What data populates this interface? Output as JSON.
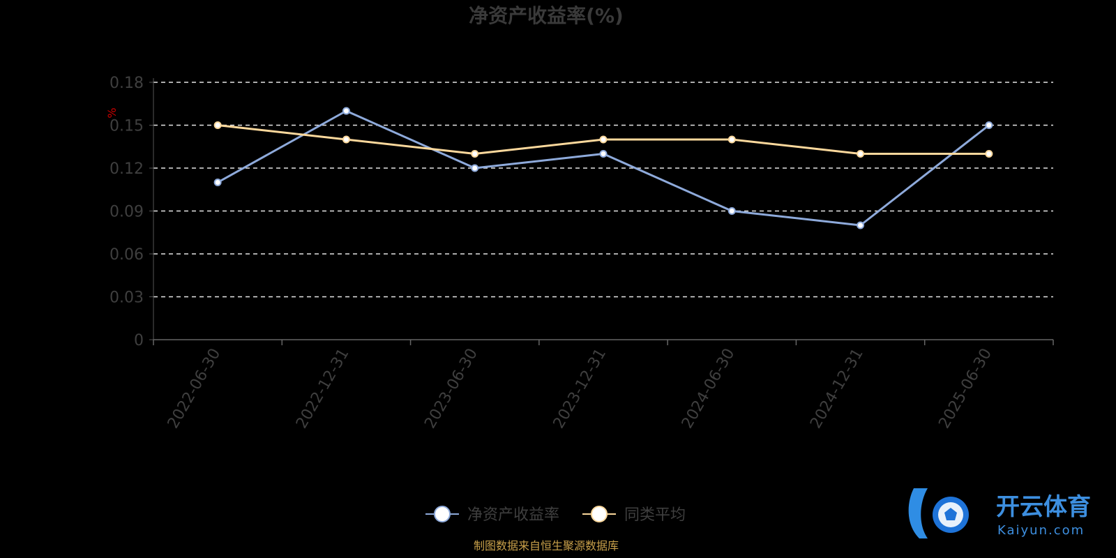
{
  "chart_data": {
    "type": "line",
    "title": "净资产收益率(%)",
    "ylabel": "%",
    "xlabel": "",
    "ylim": [
      0,
      0.18
    ],
    "yticks": [
      "0",
      "0.03",
      "0.06",
      "0.09",
      "0.12",
      "0.15",
      "0.18"
    ],
    "categories": [
      "2022-06-30",
      "2022-12-31",
      "2023-06-30",
      "2023-12-31",
      "2024-06-30",
      "2024-12-31",
      "2025-06-30"
    ],
    "grid": true,
    "legend_position": "bottom",
    "series": [
      {
        "name": "净资产收益率",
        "color": "#8eaadb",
        "values": [
          0.11,
          0.16,
          0.12,
          0.13,
          0.09,
          0.08,
          0.15
        ]
      },
      {
        "name": "同类平均",
        "color": "#fbd89c",
        "values": [
          0.15,
          0.14,
          0.13,
          0.14,
          0.14,
          0.13,
          0.13
        ]
      }
    ]
  },
  "source_note": "制图数据来自恒生聚源数据库",
  "watermark": {
    "text": "开云体育",
    "sub": "Kaiyun.com",
    "icon": "soccer-ball-icon"
  }
}
